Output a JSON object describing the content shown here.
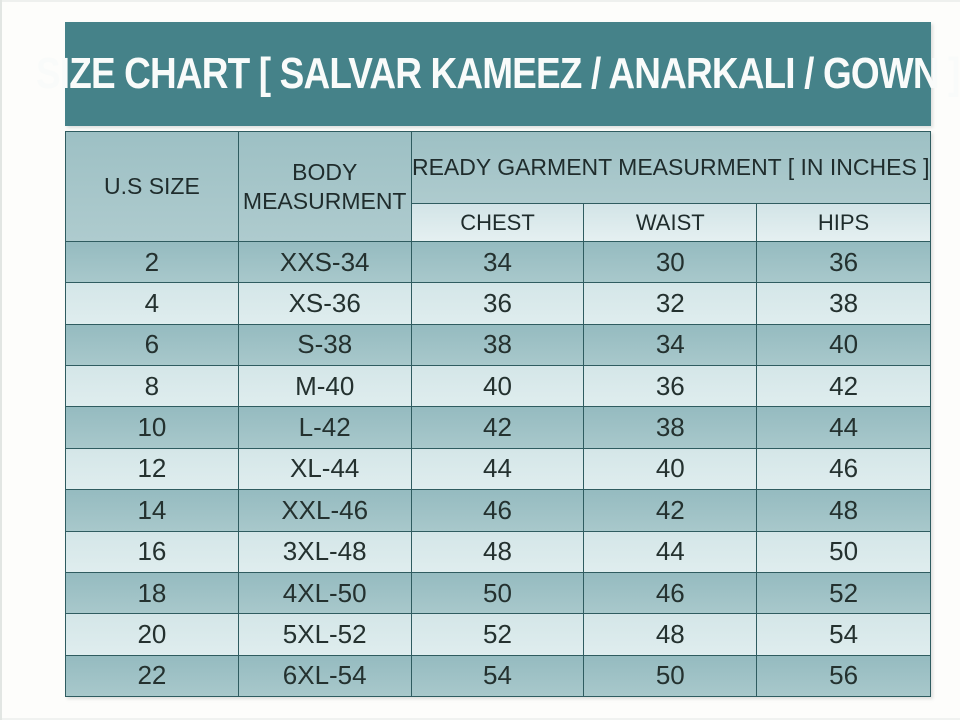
{
  "title": "SIZE CHART [ SALVAR KAMEEZ / ANARKALI / GOWN ]",
  "colors": {
    "title_bar_bg": "#458289",
    "title_text": "#f9fbfa",
    "header_bg": "#a2c3c6",
    "subheader_bg": "#dcebec",
    "row_dark_bg": "#9dc2c6",
    "row_light_bg": "#d9e9eb",
    "border": "#2f5c60",
    "text": "#24312f",
    "page_bg": "#ffffff"
  },
  "chart_data": {
    "type": "table",
    "title": "SIZE CHART [ SALVAR KAMEEZ / ANARKALI / GOWN ]",
    "columns": [
      "U.S SIZE",
      "BODY MEASURMENT",
      "CHEST",
      "WAIST",
      "HIPS"
    ],
    "group_header": "READY GARMENT MEASURMENT [ IN INCHES ]",
    "group_header_spans": [
      "CHEST",
      "WAIST",
      "HIPS"
    ],
    "units": "inches",
    "rows": [
      [
        "2",
        "XXS-34",
        "34",
        "30",
        "36"
      ],
      [
        "4",
        "XS-36",
        "36",
        "32",
        "38"
      ],
      [
        "6",
        "S-38",
        "38",
        "34",
        "40"
      ],
      [
        "8",
        "M-40",
        "40",
        "36",
        "42"
      ],
      [
        "10",
        "L-42",
        "42",
        "38",
        "44"
      ],
      [
        "12",
        "XL-44",
        "44",
        "40",
        "46"
      ],
      [
        "14",
        "XXL-46",
        "46",
        "42",
        "48"
      ],
      [
        "16",
        "3XL-48",
        "48",
        "44",
        "50"
      ],
      [
        "18",
        "4XL-50",
        "50",
        "46",
        "52"
      ],
      [
        "20",
        "5XL-52",
        "52",
        "48",
        "54"
      ],
      [
        "22",
        "6XL-54",
        "54",
        "50",
        "56"
      ]
    ]
  }
}
